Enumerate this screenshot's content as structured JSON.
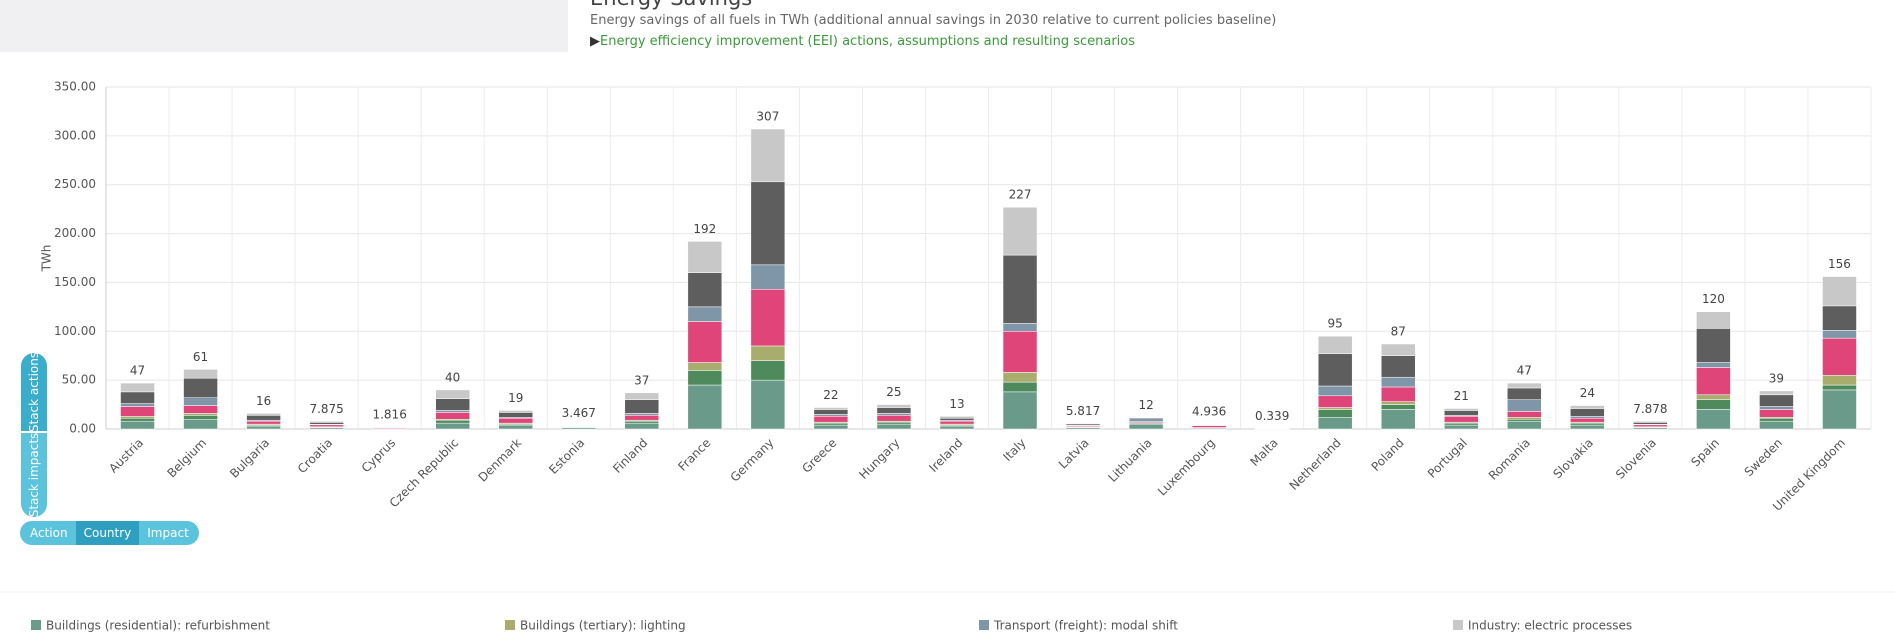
{
  "header": {
    "title": "Energy Savings",
    "subtitle": "Energy savings of all fuels in TWh (additional annual savings in 2030 relative to current policies baseline)",
    "link": "Energy efficiency improvement (EEI) actions, assumptions and resulting scenarios"
  },
  "controls": {
    "tabs": [
      "Stack actions",
      "Stack impacts"
    ],
    "buttons": [
      "Action",
      "Country",
      "Impact"
    ]
  },
  "chart_data": {
    "type": "stacked_bar",
    "y_label": "TWh",
    "categories": [
      "Austria",
      "Belgium",
      "Bulgaria",
      "Croatia",
      "Cyprus",
      "Czech Republic",
      "Denmark",
      "Estonia",
      "Finland",
      "France",
      "Germany",
      "Greece",
      "Hungary",
      "Ireland",
      "Italy",
      "Latvia",
      "Lithuania",
      "Luxembourg",
      "Malta",
      "Netherland",
      "Poland",
      "Portugal",
      "Romania",
      "Slovakia",
      "Slovenia",
      "Spain",
      "Sweden",
      "United Kingdom"
    ],
    "totals": [
      47,
      61,
      16,
      7.875,
      1.816,
      40,
      19,
      3.467,
      37,
      192,
      307,
      22,
      25,
      13,
      227,
      5.817,
      12,
      4.936,
      0.339,
      95,
      87,
      21,
      47,
      24,
      7.878,
      120,
      39,
      156
    ],
    "series": [
      {
        "name": "Buildings (residential): refurbishment",
        "color": "#6a9a8a",
        "values": [
          8,
          10,
          3,
          1.5,
          0.3,
          6,
          4,
          1.5,
          6,
          45,
          50,
          4,
          5,
          3,
          38,
          1.5,
          5,
          1,
          0.1,
          12,
          20,
          4,
          8,
          4,
          1.5,
          20,
          8,
          40
        ]
      },
      {
        "color": "#4e8a5c",
        "values": [
          3,
          4,
          1,
          0.5,
          0.1,
          3,
          1,
          0.5,
          2,
          15,
          20,
          2,
          2,
          1,
          10,
          0.5,
          1,
          0.3,
          0.02,
          8,
          5,
          2,
          2,
          2,
          0.5,
          10,
          3,
          5
        ]
      },
      {
        "name": "Buildings (tertiary): lighting",
        "color": "#a8ad6e",
        "values": [
          2,
          2,
          1,
          0.3,
          0.1,
          1,
          1,
          0.2,
          1,
          8,
          15,
          1,
          1,
          1,
          10,
          0.2,
          0.5,
          0.2,
          0.02,
          2,
          3,
          1,
          2,
          1,
          0.3,
          5,
          1,
          10
        ]
      },
      {
        "color": "#e0457a",
        "values": [
          10,
          8,
          3,
          2,
          0.8,
          7,
          5,
          0.3,
          5,
          42,
          58,
          6,
          6,
          3,
          42,
          1,
          1,
          2,
          0.1,
          12,
          15,
          6,
          6,
          4,
          2,
          28,
          8,
          38
        ]
      },
      {
        "name": "Transport (freight): modal shift",
        "color": "#7f95a8",
        "values": [
          3,
          8,
          1,
          0.5,
          0.1,
          2,
          1,
          0.3,
          2,
          15,
          25,
          2,
          2,
          1,
          8,
          0.5,
          3,
          0.3,
          0.02,
          10,
          10,
          1,
          12,
          2,
          0.5,
          5,
          3,
          8
        ]
      },
      {
        "color": "#5e5e5e",
        "values": [
          12,
          20,
          5,
          2,
          0.2,
          12,
          5,
          0.4,
          14,
          35,
          85,
          5,
          6,
          2,
          70,
          1.5,
          1,
          0.6,
          0.05,
          33,
          22,
          5,
          12,
          8,
          2,
          35,
          12,
          25
        ]
      },
      {
        "name": "Industry: electric processes",
        "color": "#c8c8c8",
        "values": [
          9,
          9,
          2,
          1.075,
          0.216,
          9,
          2,
          0.267,
          7,
          32,
          54,
          2,
          3,
          2,
          49,
          0.617,
          0.5,
          0.536,
          0.029,
          18,
          12,
          2,
          5,
          3,
          1.078,
          17,
          4,
          30
        ]
      }
    ],
    "ylim": [
      0,
      350
    ],
    "yticks": [
      {
        "value": 0,
        "label": "0.00"
      },
      {
        "value": 50,
        "label": "50.00"
      },
      {
        "value": 100,
        "label": "100.00"
      },
      {
        "value": 150,
        "label": "150.00"
      },
      {
        "value": 200,
        "label": "200.00"
      },
      {
        "value": 250,
        "label": "250.00"
      },
      {
        "value": 300,
        "label": "300.00"
      },
      {
        "value": 350,
        "label": "350.00"
      }
    ],
    "grid": true
  }
}
